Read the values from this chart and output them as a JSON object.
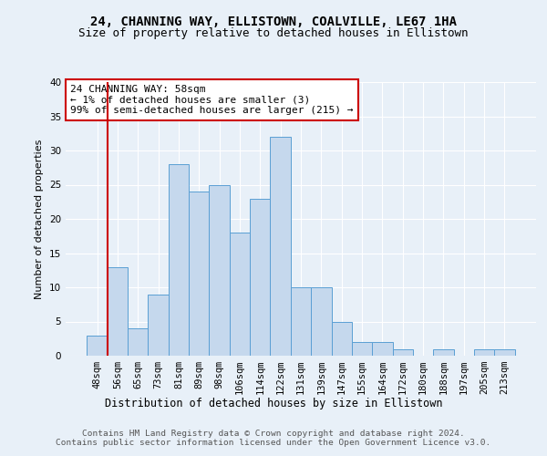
{
  "title1": "24, CHANNING WAY, ELLISTOWN, COALVILLE, LE67 1HA",
  "title2": "Size of property relative to detached houses in Ellistown",
  "xlabel": "Distribution of detached houses by size in Ellistown",
  "ylabel": "Number of detached properties",
  "footer1": "Contains HM Land Registry data © Crown copyright and database right 2024.",
  "footer2": "Contains public sector information licensed under the Open Government Licence v3.0.",
  "categories": [
    "48sqm",
    "56sqm",
    "65sqm",
    "73sqm",
    "81sqm",
    "89sqm",
    "98sqm",
    "106sqm",
    "114sqm",
    "122sqm",
    "131sqm",
    "139sqm",
    "147sqm",
    "155sqm",
    "164sqm",
    "172sqm",
    "180sqm",
    "188sqm",
    "197sqm",
    "205sqm",
    "213sqm"
  ],
  "values": [
    3,
    13,
    4,
    9,
    28,
    24,
    25,
    18,
    23,
    32,
    10,
    10,
    5,
    2,
    2,
    1,
    0,
    1,
    0,
    1,
    1
  ],
  "bar_color": "#c5d8ed",
  "bar_edge_color": "#5a9fd4",
  "vline_x_idx": 1,
  "vline_color": "#cc0000",
  "annotation_text": "24 CHANNING WAY: 58sqm\n← 1% of detached houses are smaller (3)\n99% of semi-detached houses are larger (215) →",
  "annotation_box_color": "#ffffff",
  "annotation_box_edge": "#cc0000",
  "ylim": [
    0,
    40
  ],
  "yticks": [
    0,
    5,
    10,
    15,
    20,
    25,
    30,
    35,
    40
  ],
  "background_color": "#e8f0f8",
  "plot_bg_color": "#e8f0f8",
  "grid_color": "#ffffff",
  "title1_fontsize": 10,
  "title2_fontsize": 9,
  "xlabel_fontsize": 8.5,
  "ylabel_fontsize": 8,
  "tick_fontsize": 7.5,
  "footer_fontsize": 6.8,
  "annotation_fontsize": 8
}
